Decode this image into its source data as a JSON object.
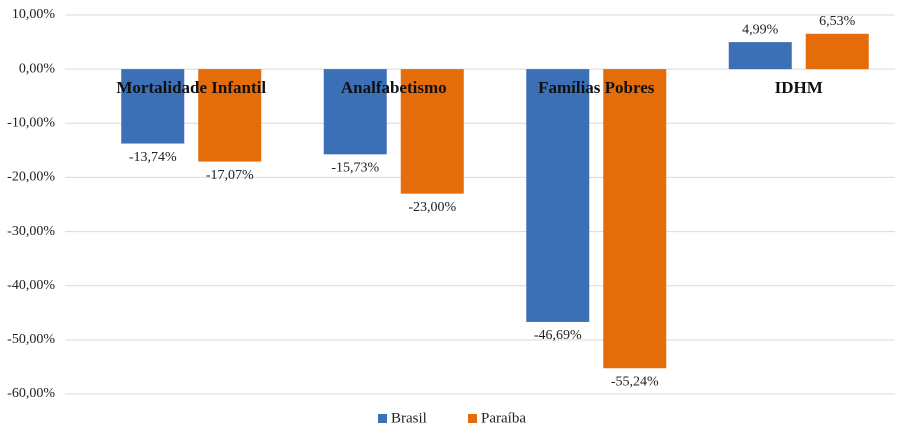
{
  "chart_data": {
    "type": "bar",
    "categories": [
      "Mortalidade Infantil",
      "Analfabetismo",
      "Famílias Pobres",
      "IDHM"
    ],
    "series": [
      {
        "name": "Brasil",
        "color": "#3b6fb6",
        "values": [
          -13.74,
          -15.73,
          -46.69,
          4.99
        ],
        "value_labels": [
          "-13,74%",
          "-15,73%",
          "-46,69%",
          "4,99%"
        ]
      },
      {
        "name": "Paraíba",
        "color": "#e46c0a",
        "values": [
          -17.07,
          -23.0,
          -55.24,
          6.53
        ],
        "value_labels": [
          "-17,07%",
          "-23,00%",
          "-55,24%",
          "6,53%"
        ]
      }
    ],
    "ylim": [
      -60,
      10
    ],
    "yticks": [
      {
        "value": 10,
        "label": "10,00%"
      },
      {
        "value": 0,
        "label": "0,00%"
      },
      {
        "value": -10,
        "label": "-10,00%"
      },
      {
        "value": -20,
        "label": "-20,00%"
      },
      {
        "value": -30,
        "label": "-30,00%"
      },
      {
        "value": -40,
        "label": "-40,00%"
      },
      {
        "value": -50,
        "label": "-50,00%"
      },
      {
        "value": -60,
        "label": "-60,00%"
      }
    ],
    "grid": true,
    "legend": "bottom"
  }
}
